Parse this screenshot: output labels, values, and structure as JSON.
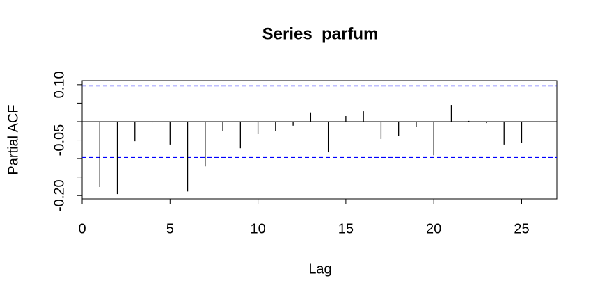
{
  "chart_data": {
    "type": "pacf",
    "title": "Series  parfum",
    "xlabel": "Lag",
    "ylabel": "Partial ACF",
    "x": [
      1,
      2,
      3,
      4,
      5,
      6,
      7,
      8,
      9,
      10,
      11,
      12,
      13,
      14,
      15,
      16,
      17,
      18,
      19,
      20,
      21,
      22,
      23,
      24,
      25,
      26
    ],
    "values": [
      -0.177,
      -0.196,
      -0.053,
      -0.002,
      -0.062,
      -0.189,
      -0.121,
      -0.026,
      -0.072,
      -0.034,
      -0.025,
      -0.011,
      0.025,
      -0.083,
      0.015,
      0.028,
      -0.047,
      -0.038,
      -0.015,
      -0.091,
      0.045,
      0.002,
      -0.004,
      -0.062,
      -0.057,
      -0.002
    ],
    "color": "#000000",
    "confidence_bounds": [
      0.097,
      -0.097
    ],
    "confidence_color": "#0000ff",
    "xlim": [
      0,
      27
    ],
    "xticks": [
      0,
      5,
      10,
      15,
      20,
      25
    ],
    "ylim": [
      -0.209,
      0.111
    ],
    "yticks": [
      {
        "value": 0.1,
        "label": "0.10"
      },
      -0.05,
      {
        "value": -0.2,
        "label": "-0.20"
      }
    ],
    "yminor_ticks": [
      0.05,
      0,
      -0.1,
      -0.15
    ]
  }
}
